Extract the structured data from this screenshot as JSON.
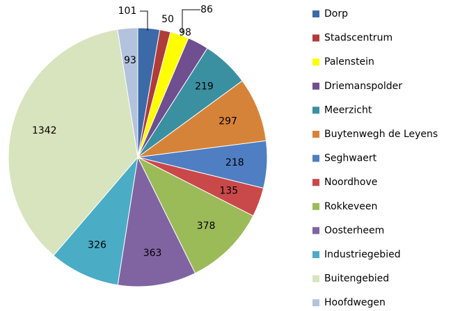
{
  "chart_data": {
    "type": "pie",
    "categories": [
      "Dorp",
      "Stadscentrum",
      "Palenstein",
      "Driemanspolder",
      "Meerzicht",
      "Buytenwegh de Leyens",
      "Seghwaert",
      "Noordhove",
      "Rokkeveen",
      "Oosterheem",
      "Industriegebied",
      "Buitengebied",
      "Hoofdwegen"
    ],
    "values": [
      101,
      50,
      86,
      98,
      219,
      297,
      218,
      135,
      378,
      363,
      326,
      1342,
      93
    ],
    "colors": [
      "#3c6aa8",
      "#b03c3a",
      "#ffff00",
      "#6f4f8f",
      "#3a8fa0",
      "#d6833a",
      "#4f7ec2",
      "#c9494a",
      "#9bbb59",
      "#8064a2",
      "#4bacc6",
      "#d7e4bd",
      "#b3c3de"
    ],
    "legend": "right"
  }
}
